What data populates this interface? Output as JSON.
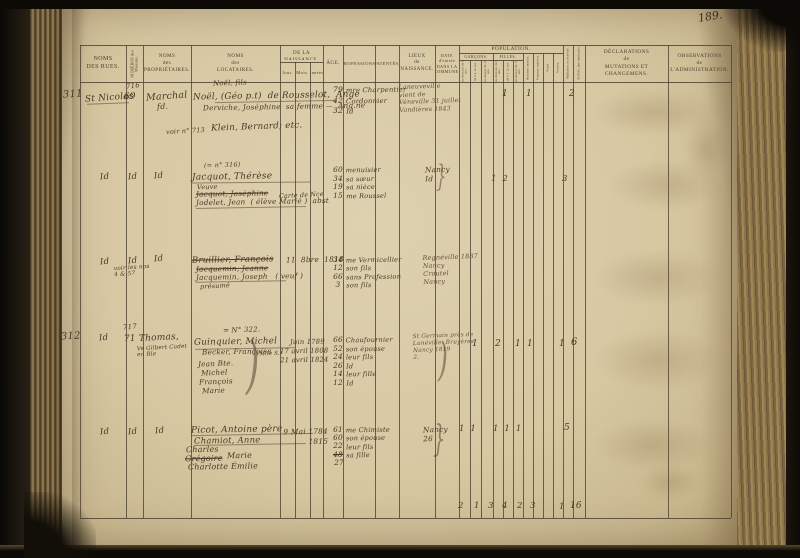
{
  "photo": {
    "page_number": "189."
  },
  "colors": {
    "ink": "#4a3826",
    "paper": "#d7c8a2",
    "print": "#4b4132"
  },
  "table": {
    "headers": {
      "rues": "NOMS\nDES RUES.",
      "maisons": "NUMÉROS des Maisons.",
      "proprietaires": "NOMS\ndes\nPROPRIÉTAIRES.",
      "locataires": "NOMS\ndes\nLOCATAIRES.",
      "date_naissance": "DATE\nDE LA NAISSANCE.",
      "jour": "Jour.",
      "mois": "Mois.",
      "annees": "Années.",
      "age": "ÂGE.",
      "professions": "PROFESSIONS.",
      "patentes": "PATENTÉS.",
      "lieux": "LIEUX\nde\nNAISSANCE.",
      "date_entree": "DATE\nd'entrée\nDANS LA COMMUNE.",
      "population": "POPULATION.",
      "garcons": "GARÇONS.",
      "filles": "FILLES.",
      "g1": "au-dessous de 6 ans.",
      "g2": "de 6 à 12 ans.",
      "g3": "au-dessus de 12 ans.",
      "f1": "au-dessous de 6 ans.",
      "f2": "de 6 à 12 ans.",
      "f3": "au-dessus de 12 ans.",
      "hommes_maries": "Hommes mariés.",
      "femmes_mariees": "Femmes mariées.",
      "veufs": "Veufs.",
      "veuves": "Veuves.",
      "militaires": "Militaires en activité.",
      "total": "TOTAL des habitants.",
      "declarations": "DÉCLARATIONS\nde\nMUTATIONS ET CHANGEMENS.",
      "observations": "OBSERVATIONS\nde\nL'ADMINISTRATION."
    }
  },
  "rows": [
    {
      "no": "311",
      "street": "St Nicolas",
      "house_old": "716",
      "house": "69",
      "proprietor": "Marchal",
      "proprietor2": "fd.",
      "t0": "Noël, fils",
      "t1": "Noël, (Géo p.t)  de Rousselot,  Ange",
      "t2": "Derviche, Joséphine  sa femme —  Ang.ne",
      "t4a": "voir n° 713",
      "t4b": "Klein, Bernard; etc.",
      "ages": "79\n42\n32",
      "professions": "mre Charpentier\nCordonnier\nId",
      "birthplace": "Laneuveville\nvient de\nVéneville 31 juillet\nVandières 1843",
      "pop_f": "1",
      "pop_m": "1",
      "pop_total": "2"
    },
    {
      "street": "Id",
      "house": "Id",
      "proprietor": "Id",
      "note": "(= n° 316)",
      "t1": "Jacquot, Thérèse",
      "t1b": "Veuve",
      "t2": "Jacquot, Joséphine",
      "t3": "Jodelet, Jean  ( élève Marié )  abst",
      "note2": "Carte de Nce",
      "ages": "60\n34\n19\n15",
      "professions": "menuisier\nsa sœur\nsa nièce\nme Roussel",
      "birthplace": "Nancy\nId",
      "pop_g": "1  2",
      "pop_total": "3"
    },
    {
      "street": "Id",
      "house": "Id",
      "proprietor": "Id",
      "note": "voir les nos\n4 & 57",
      "t1": "Bruillier, François",
      "t2": "Jacquemin, Jeanne",
      "t3": "Jacquemin, Joseph   ( veuf )",
      "t4": "présumé",
      "birthdate": "11  8bre  1818",
      "ages": "34\n12\n66\n3",
      "professions": "me Vermicellier\nson fils\nsans Profession\nson fils",
      "birthplace": "Regnéville 1837\nNancy\nCroutel\nNancy"
    },
    {
      "no": "312",
      "street": "Id",
      "house_old": "717",
      "house": "71",
      "proprietor": "Thomas,",
      "proprietor2": "Ve Gilbert Cadet\nen Rle",
      "note": "= N° 322.",
      "t1": "Guinquier, Michel",
      "t2": "Becker, Françoise",
      "t2b": "(Mlle S.)",
      "t3": "Jean Bte.",
      "t4": "Michel",
      "t5": "François",
      "t6": "Marie",
      "dates": "Juin 1789\n17 avril 1808\n21 avril 1824",
      "ages": "66\n52\n24\n26\n14\n12",
      "professions": "Chaufournier\nson épouse\nleur fils\nId\nleur fille\nId",
      "birthplace": "St Germain près de\nLunéville. Bruyères\nNancy 1819\n2.",
      "pop_g3": "1",
      "pop_f": "2",
      "pop_hm": "1",
      "pop_fm": "1",
      "pop_v": "1",
      "pop_total": "6"
    },
    {
      "street": "Id",
      "house": "Id",
      "proprietor": "Id",
      "t1": "Picot, Antoine père",
      "t2": "Chamiot, Anne",
      "t3": "Charles",
      "t4": "Grégoire",
      "t4b": "Marie",
      "t5": "Charlotte Émilie",
      "dates": "9 Mai 1784\n1815",
      "ages": "61\n60\n22",
      "age4": "48",
      "age5": "27",
      "professions": "me Chimiste\nson épouse\nleur fils\nsa fille",
      "birthplace": "Nancy\n26",
      "pop_g": "1  1",
      "pop_f": "1  1  1",
      "pop_total": "5"
    }
  ],
  "totals": {
    "c1": "2",
    "c2": "1",
    "c3": "3",
    "c4": "4",
    "c5": "2",
    "c6": "3",
    "militaires": "1",
    "total": "16"
  }
}
